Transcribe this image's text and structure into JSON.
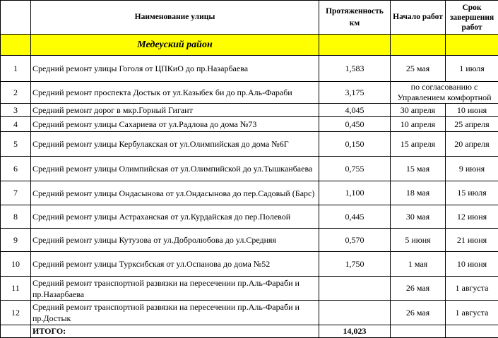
{
  "header": {
    "num": "",
    "street": "Наименование улицы",
    "length": "Протяженность км",
    "start": "Начало работ",
    "end": "Срок завершения работ"
  },
  "district": "Медеуский район",
  "rows": [
    {
      "num": "1",
      "name": "Средний ремонт улицы Гоголя от ЦПКиО до пр.Назарбаева",
      "length": "1,583",
      "start": "25 мая",
      "end": "1 июля"
    },
    {
      "num": "2",
      "name": "Средний ремонт проспекта Достык от ул.Казыбек би до пр.Аль-Фараби",
      "length": "3,175",
      "dates_merged": "по согласованию с Управлением комфортной"
    },
    {
      "num": "3",
      "name": "Средний ремонт дорог в мкр.Горный Гигант",
      "length": "4,045",
      "start": "30 апреля",
      "end": "10 июня"
    },
    {
      "num": "4",
      "name": "Средний ремонт улицы Сахариева от ул.Радлова до дома №73",
      "length": "0,450",
      "start": "10 апреля",
      "end": "25 апреля"
    },
    {
      "num": "5",
      "name": "Средний ремонт улицы Кербулакская от ул.Олимпийская до дома №6Г",
      "length": "0,150",
      "start": "15 апреля",
      "end": "20 апреля"
    },
    {
      "num": "6",
      "name": "Средний ремонт улицы Олимпийская от ул.Олимпийской до ул.Тышканбаева",
      "length": "0,755",
      "start": "15 мая",
      "end": "9 июня"
    },
    {
      "num": "7",
      "name": "Средний ремонт улицы Ондасынова от ул.Ондасынова до пер.Садовый (Барс)",
      "length": "1,100",
      "start": "18 мая",
      "end": "15 июля"
    },
    {
      "num": "8",
      "name": "Средний ремонт улицы Астраханская от ул.Курдайская до пер.Полевой",
      "length": "0,445",
      "start": "30 мая",
      "end": "12 июня"
    },
    {
      "num": "9",
      "name": "Средний ремонт улицы Кутузова от ул.Добролюбова до ул.Средняя",
      "length": "0,570",
      "start": "5 июня",
      "end": "21 июня"
    },
    {
      "num": "10",
      "name": "Средний ремонт улицы Турксибская от ул.Оспанова до дома №52",
      "length": "1,750",
      "start": "1 мая",
      "end": "10 июня"
    },
    {
      "num": "11",
      "name": "Средний ремонт транспортной развязки на пересечении пр.Аль-Фараби и пр.Назарбаева",
      "length": "",
      "start": "26 мая",
      "end": "1 августа"
    },
    {
      "num": "12",
      "name": "Средний ремонт транспортной развязки на пересечении пр.Аль-Фараби и пр.Достык",
      "length": "",
      "start": "26 мая",
      "end": "1 августа"
    }
  ],
  "total": {
    "label": "ИТОГО:",
    "length": "14,023"
  },
  "colors": {
    "district_bg": "#ffff00",
    "border": "#000000"
  }
}
